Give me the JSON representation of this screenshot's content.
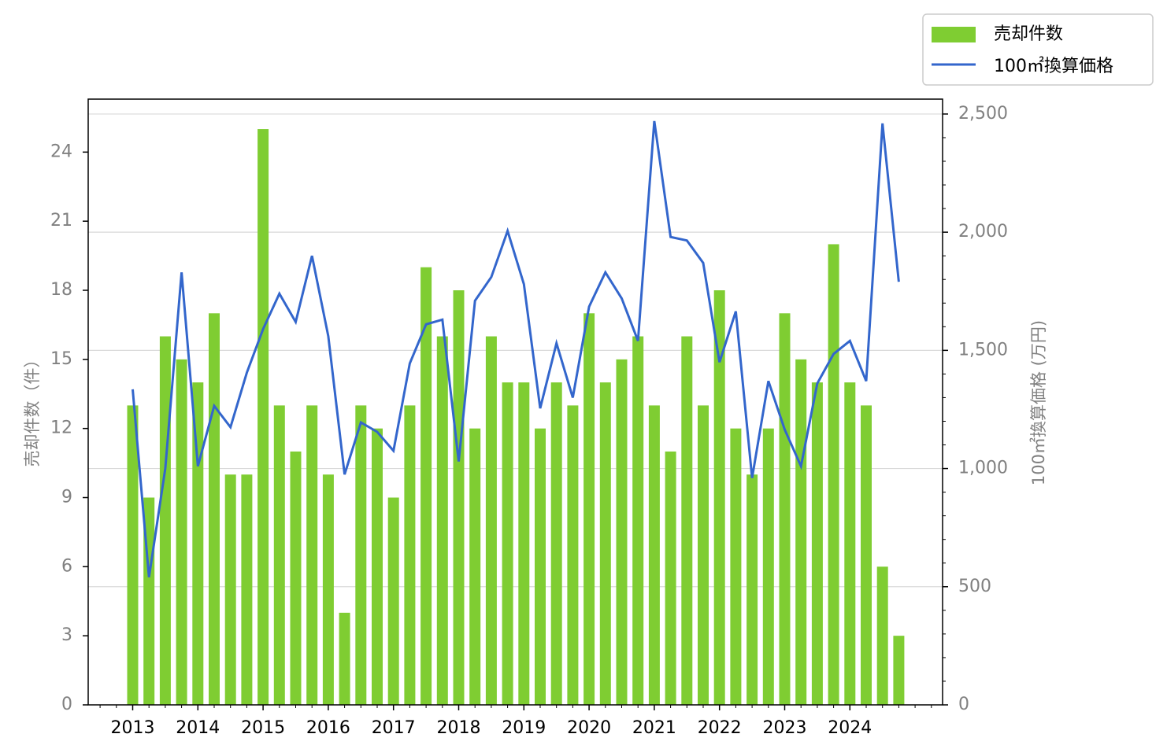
{
  "chart_data": {
    "type": "bar+line",
    "x_tick_labels": [
      "2013",
      "2014",
      "2015",
      "2016",
      "2017",
      "2018",
      "2019",
      "2020",
      "2021",
      "2022",
      "2023",
      "2024"
    ],
    "series": [
      {
        "name": "売却件数",
        "type": "bar",
        "color": "#7fcd32",
        "axis": "left",
        "values": [
          13,
          9,
          16,
          15,
          14,
          17,
          10,
          10,
          25,
          13,
          11,
          13,
          10,
          4,
          13,
          12,
          9,
          13,
          19,
          16,
          18,
          12,
          16,
          14,
          14,
          12,
          14,
          13,
          17,
          14,
          15,
          16,
          13,
          11,
          16,
          13,
          18,
          12,
          10,
          12,
          17,
          15,
          14,
          20,
          14,
          13,
          6,
          3
        ]
      },
      {
        "name": "100㎡換算価格",
        "type": "line",
        "color": "#3366cc",
        "axis": "right",
        "values": [
          1335,
          540,
          1000,
          1830,
          1010,
          1265,
          1175,
          1405,
          1590,
          1740,
          1620,
          1900,
          1560,
          975,
          1195,
          1155,
          1075,
          1445,
          1610,
          1630,
          1030,
          1710,
          1810,
          2005,
          1780,
          1255,
          1530,
          1300,
          1685,
          1830,
          1720,
          1540,
          2470,
          1980,
          1965,
          1870,
          1450,
          1665,
          960,
          1370,
          1165,
          1010,
          1360,
          1485,
          1540,
          1370,
          2460,
          1790
        ]
      }
    ],
    "y_left": {
      "label": "売却件数（件）",
      "lim": [
        0,
        26.3
      ],
      "ticks": [
        0,
        3,
        6,
        9,
        12,
        15,
        18,
        21,
        24
      ]
    },
    "y_right": {
      "label": "100㎡換算価格 (万円)",
      "lim": [
        0,
        2563
      ],
      "ticks": [
        0,
        500,
        1000,
        1500,
        2000,
        2500
      ],
      "tick_labels": [
        "0",
        "500",
        "1,000",
        "1,500",
        "2,000",
        "2,500"
      ]
    },
    "grid": "horizontal, right axis",
    "legend": {
      "position": "top-right, outside plot",
      "items": [
        "売却件数",
        "100㎡換算価格"
      ]
    }
  }
}
